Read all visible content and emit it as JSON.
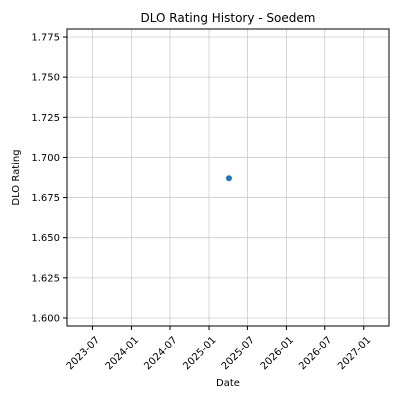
{
  "chart_data": {
    "type": "scatter",
    "title": "DLO Rating History - Soedem",
    "xlabel": "Date",
    "ylabel": "DLO Rating",
    "x_ticks": [
      "2023-07",
      "2024-01",
      "2024-07",
      "2025-01",
      "2025-07",
      "2026-01",
      "2026-07",
      "2027-01"
    ],
    "y_ticks": [
      "1.600",
      "1.625",
      "1.650",
      "1.675",
      "1.700",
      "1.725",
      "1.750",
      "1.775"
    ],
    "xlim": [
      "2023-03-03",
      "2027-04-30"
    ],
    "ylim": [
      1.595,
      1.78
    ],
    "grid": true,
    "legend": "none",
    "marker_color": "#1f77b4",
    "series": [
      {
        "x": [
          "2025-04-05"
        ],
        "y": [
          1.687
        ]
      }
    ]
  }
}
